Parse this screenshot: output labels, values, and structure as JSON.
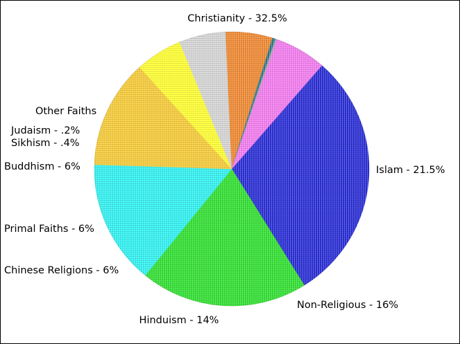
{
  "chart_data": {
    "type": "pie",
    "slices": [
      {
        "label": "Christianity - 32.5%",
        "value": 32.5,
        "color": "#2b2fd6"
      },
      {
        "label": "Islam - 21.5%",
        "value": 21.5,
        "color": "#33e133"
      },
      {
        "label": "Non-Religious - 16%",
        "value": 16,
        "color": "#33f2f2"
      },
      {
        "label": "Hinduism - 14%",
        "value": 14,
        "color": "#f7cc3a"
      },
      {
        "label": "Chinese Religions - 6%",
        "value": 6,
        "color": "#ffff33"
      },
      {
        "label": "Primal Faiths - 6%",
        "value": 6,
        "color": "#d6d6d6"
      },
      {
        "label": "Buddhism - 6%",
        "value": 6,
        "color": "#f08a33"
      },
      {
        "label": "Sikhism - .4%",
        "value": 0.4,
        "color": "#2f7a8f"
      },
      {
        "label": "Judaism - .2%",
        "value": 0.2,
        "color": "#a8a8a8"
      },
      {
        "label": "Other Faiths",
        "value": 6.6,
        "color": "#f47df0"
      }
    ]
  }
}
